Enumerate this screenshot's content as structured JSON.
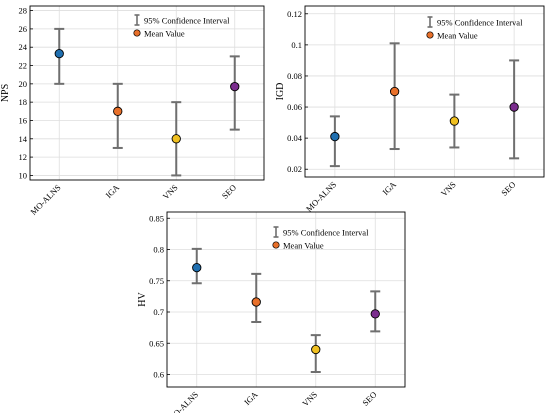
{
  "legend_items": {
    "ci": "95% Confidence Interval",
    "mean": "Mean Value"
  },
  "chart_data": [
    {
      "type": "scatter",
      "ylabel": "NPS",
      "categories": [
        "MO-ALNS",
        "IGA",
        "VNS",
        "SEO"
      ],
      "mean": [
        23.3,
        17.0,
        14.0,
        19.7
      ],
      "ci_low": [
        20.0,
        13.0,
        10.0,
        15.0
      ],
      "ci_high": [
        26.0,
        20.0,
        18.0,
        23.0
      ],
      "ylim": [
        9.5,
        28.5
      ],
      "yticks": [
        10,
        12,
        14,
        16,
        18,
        20,
        22,
        24,
        26,
        28
      ],
      "ytick_labels": [
        "10",
        "12",
        "14",
        "16",
        "18",
        "20",
        "22",
        "24",
        "26",
        "28"
      ],
      "grid": true,
      "legend": "top-right"
    },
    {
      "type": "scatter",
      "ylabel": "IGD",
      "categories": [
        "MO-ALNS",
        "IGA",
        "VNS",
        "SEO"
      ],
      "mean": [
        0.041,
        0.07,
        0.051,
        0.06
      ],
      "ci_low": [
        0.022,
        0.033,
        0.034,
        0.027
      ],
      "ci_high": [
        0.054,
        0.101,
        0.068,
        0.09
      ],
      "ylim": [
        0.015,
        0.125
      ],
      "yticks": [
        0.02,
        0.04,
        0.06,
        0.08,
        0.1,
        0.12
      ],
      "ytick_labels": [
        "0.02",
        "0.04",
        "0.06",
        "0.08",
        "0.1",
        "0.12"
      ],
      "grid": true,
      "legend": "top-right"
    },
    {
      "type": "scatter",
      "ylabel": "HV",
      "categories": [
        "MO-ALNS",
        "IGA",
        "VNS",
        "SEO"
      ],
      "mean": [
        0.771,
        0.716,
        0.64,
        0.697
      ],
      "ci_low": [
        0.746,
        0.684,
        0.604,
        0.669
      ],
      "ci_high": [
        0.801,
        0.761,
        0.663,
        0.733
      ],
      "ylim": [
        0.58,
        0.86
      ],
      "yticks": [
        0.6,
        0.65,
        0.7,
        0.75,
        0.8,
        0.85
      ],
      "ytick_labels": [
        "0.6",
        "0.65",
        "0.7",
        "0.75",
        "0.8",
        "0.85"
      ],
      "grid": true,
      "legend": "top-right"
    }
  ],
  "colors": {
    "series": [
      "#1f6fb0",
      "#e8702a",
      "#f0c020",
      "#7b2d8e"
    ],
    "errorbar": "#6f6f6f",
    "grid": "#dedede",
    "axis": "#000000"
  }
}
